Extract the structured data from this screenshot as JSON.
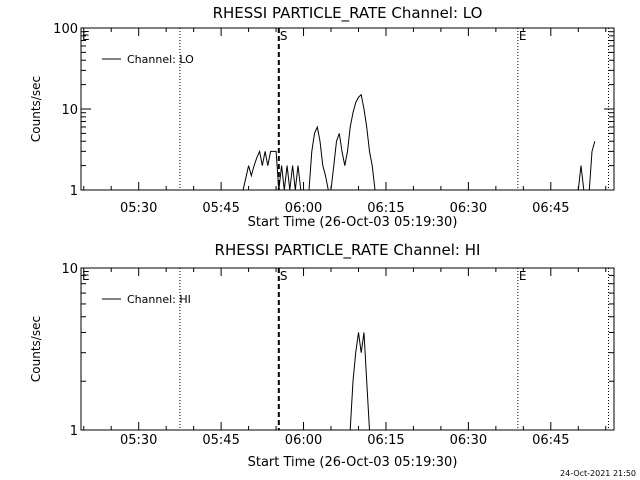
{
  "footer": {
    "timestamp": "24-Oct-2021 21:50"
  },
  "chart_data": [
    {
      "type": "line",
      "title": "RHESSI PARTICLE_RATE Channel: LO",
      "xlabel": "Start Time (26-Oct-03 05:19:30)",
      "ylabel": "Counts/sec",
      "yscale": "log",
      "ylim": [
        1,
        100
      ],
      "yticks": [
        {
          "v": 1,
          "label": "1"
        },
        {
          "v": 10,
          "label": "10"
        },
        {
          "v": 100,
          "label": "100"
        }
      ],
      "xlim": [
        "05:19:30",
        "06:56:30"
      ],
      "xticks": [
        "05:30",
        "05:45",
        "06:00",
        "06:15",
        "06:30",
        "06:45"
      ],
      "grid": false,
      "legend": {
        "position": "top-left",
        "entries": [
          "Channel: LO"
        ]
      },
      "markers": [
        {
          "label": "E",
          "time": "05:19:30",
          "style": "none"
        },
        {
          "label": "",
          "time": "05:37:30",
          "style": "dotted"
        },
        {
          "label": "S",
          "time": "05:55:30",
          "style": "dashed"
        },
        {
          "label": "E",
          "time": "06:39:00",
          "style": "dotted"
        },
        {
          "label": "",
          "time": "06:55:30",
          "style": "dotted"
        }
      ],
      "series": [
        {
          "name": "Channel: LO",
          "segments": [
            [
              [
                "05:49:00",
                1
              ],
              [
                "05:50:00",
                2
              ],
              [
                "05:50:30",
                1.5
              ],
              [
                "05:51:00",
                2
              ],
              [
                "05:51:30",
                2.5
              ],
              [
                "05:52:00",
                3
              ],
              [
                "05:52:30",
                2
              ],
              [
                "05:53:00",
                3
              ],
              [
                "05:53:30",
                2
              ],
              [
                "05:54:00",
                3
              ],
              [
                "05:55:00",
                3
              ],
              [
                "05:55:30",
                1
              ],
              [
                "05:56:00",
                2
              ],
              [
                "05:56:30",
                1
              ],
              [
                "05:57:00",
                2
              ],
              [
                "05:57:30",
                1
              ],
              [
                "05:58:00",
                2
              ],
              [
                "05:58:30",
                1
              ],
              [
                "05:59:00",
                2
              ],
              [
                "05:59:30",
                1
              ]
            ],
            [
              [
                "06:01:00",
                1
              ],
              [
                "06:01:30",
                3
              ],
              [
                "06:02:00",
                5
              ],
              [
                "06:02:30",
                6
              ],
              [
                "06:03:00",
                4
              ],
              [
                "06:03:30",
                2
              ],
              [
                "06:04:00",
                1.5
              ],
              [
                "06:04:30",
                1
              ]
            ],
            [
              [
                "06:05:00",
                1
              ],
              [
                "06:05:30",
                2
              ],
              [
                "06:06:00",
                4
              ],
              [
                "06:06:30",
                5
              ],
              [
                "06:07:00",
                3
              ],
              [
                "06:07:30",
                2
              ],
              [
                "06:08:00",
                3
              ],
              [
                "06:08:30",
                6
              ],
              [
                "06:09:00",
                9
              ],
              [
                "06:09:30",
                12
              ],
              [
                "06:10:00",
                14
              ],
              [
                "06:10:30",
                15
              ],
              [
                "06:11:00",
                10
              ],
              [
                "06:11:30",
                6
              ],
              [
                "06:12:00",
                3
              ],
              [
                "06:12:30",
                2
              ],
              [
                "06:13:00",
                1
              ]
            ],
            [
              [
                "06:50:00",
                1
              ],
              [
                "06:50:30",
                2
              ],
              [
                "06:51:00",
                1
              ]
            ],
            [
              [
                "06:52:00",
                1
              ],
              [
                "06:52:30",
                3
              ],
              [
                "06:53:00",
                4
              ]
            ]
          ]
        }
      ]
    },
    {
      "type": "line",
      "title": "RHESSI PARTICLE_RATE Channel: HI",
      "xlabel": "Start Time (26-Oct-03 05:19:30)",
      "ylabel": "Counts/sec",
      "yscale": "log",
      "ylim": [
        1,
        10
      ],
      "yticks": [
        {
          "v": 1,
          "label": "1"
        },
        {
          "v": 10,
          "label": "10"
        }
      ],
      "xlim": [
        "05:19:30",
        "06:56:30"
      ],
      "xticks": [
        "05:30",
        "05:45",
        "06:00",
        "06:15",
        "06:30",
        "06:45"
      ],
      "grid": false,
      "legend": {
        "position": "top-left",
        "entries": [
          "Channel: HI"
        ]
      },
      "markers": [
        {
          "label": "E",
          "time": "05:19:30",
          "style": "none"
        },
        {
          "label": "",
          "time": "05:37:30",
          "style": "dotted"
        },
        {
          "label": "S",
          "time": "05:55:30",
          "style": "dashed"
        },
        {
          "label": "E",
          "time": "06:39:00",
          "style": "dotted"
        },
        {
          "label": "",
          "time": "06:55:30",
          "style": "dotted"
        }
      ],
      "series": [
        {
          "name": "Channel: HI",
          "segments": [
            [
              [
                "06:08:30",
                1
              ],
              [
                "06:09:00",
                2
              ],
              [
                "06:09:30",
                3
              ],
              [
                "06:10:00",
                4
              ],
              [
                "06:10:30",
                3
              ],
              [
                "06:11:00",
                4
              ],
              [
                "06:11:30",
                2
              ],
              [
                "06:12:00",
                1
              ]
            ]
          ]
        }
      ]
    }
  ]
}
